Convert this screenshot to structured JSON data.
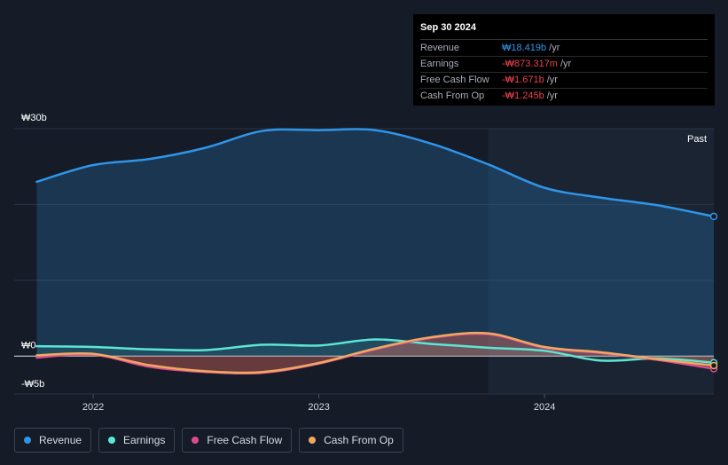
{
  "tooltip": {
    "date": "Sep 30 2024",
    "rows": [
      {
        "label": "Revenue",
        "value": "₩18.419b",
        "unit": "/yr",
        "color": "#2f95e8"
      },
      {
        "label": "Earnings",
        "value": "-₩873.317m",
        "unit": "/yr",
        "color": "#e8424d"
      },
      {
        "label": "Free Cash Flow",
        "value": "-₩1.671b",
        "unit": "/yr",
        "color": "#e8424d"
      },
      {
        "label": "Cash From Op",
        "value": "-₩1.245b",
        "unit": "/yr",
        "color": "#e8424d"
      }
    ]
  },
  "past_label": "Past",
  "legend": [
    {
      "label": "Revenue",
      "color": "#2f95e8"
    },
    {
      "label": "Earnings",
      "color": "#5ce6d3"
    },
    {
      "label": "Free Cash Flow",
      "color": "#d94d8c"
    },
    {
      "label": "Cash From Op",
      "color": "#f0a860"
    }
  ],
  "chart_data": {
    "type": "line",
    "ylim": [
      -5,
      30
    ],
    "y_tick_labels": [
      {
        "value": 30,
        "label": "₩30b"
      },
      {
        "value": 0,
        "label": "₩0"
      },
      {
        "value": -5,
        "label": "-₩5b"
      }
    ],
    "x_tick_labels": [
      {
        "value": 2022.0,
        "label": "2022"
      },
      {
        "value": 2023.0,
        "label": "2023"
      },
      {
        "value": 2024.0,
        "label": "2024"
      }
    ],
    "xlim": [
      2021.65,
      2024.75
    ],
    "forecast_start": 2023.75,
    "grid": true,
    "series": [
      {
        "name": "Revenue",
        "color": "#2f95e8",
        "x": [
          2021.75,
          2022.0,
          2022.25,
          2022.5,
          2022.75,
          2023.0,
          2023.25,
          2023.5,
          2023.75,
          2024.0,
          2024.25,
          2024.5,
          2024.75
        ],
        "y": [
          23.0,
          25.2,
          26.0,
          27.5,
          29.7,
          29.8,
          29.8,
          28.0,
          25.3,
          22.2,
          20.9,
          19.9,
          18.42
        ]
      },
      {
        "name": "Earnings",
        "color": "#5ce6d3",
        "x": [
          2021.75,
          2022.0,
          2022.25,
          2022.5,
          2022.75,
          2023.0,
          2023.25,
          2023.5,
          2023.75,
          2024.0,
          2024.25,
          2024.5,
          2024.75
        ],
        "y": [
          1.3,
          1.2,
          0.9,
          0.8,
          1.5,
          1.4,
          2.2,
          1.6,
          1.1,
          0.7,
          -0.6,
          -0.3,
          -0.87
        ]
      },
      {
        "name": "Free Cash Flow",
        "color": "#d94d8c",
        "x": [
          2021.75,
          2022.0,
          2022.25,
          2022.5,
          2022.75,
          2023.0,
          2023.25,
          2023.5,
          2023.75,
          2024.0,
          2024.25,
          2024.5,
          2024.75
        ],
        "y": [
          -0.2,
          0.2,
          -1.4,
          -2.1,
          -2.2,
          -1.0,
          0.9,
          2.4,
          2.9,
          1.1,
          0.4,
          -0.5,
          -1.67
        ]
      },
      {
        "name": "Cash From Op",
        "color": "#f0a860",
        "x": [
          2021.75,
          2022.0,
          2022.25,
          2022.5,
          2022.75,
          2023.0,
          2023.25,
          2023.5,
          2023.75,
          2024.0,
          2024.25,
          2024.5,
          2024.75
        ],
        "y": [
          0.1,
          0.3,
          -1.2,
          -2.0,
          -2.1,
          -0.9,
          1.0,
          2.5,
          3.0,
          1.2,
          0.5,
          -0.4,
          -1.25
        ]
      }
    ]
  }
}
